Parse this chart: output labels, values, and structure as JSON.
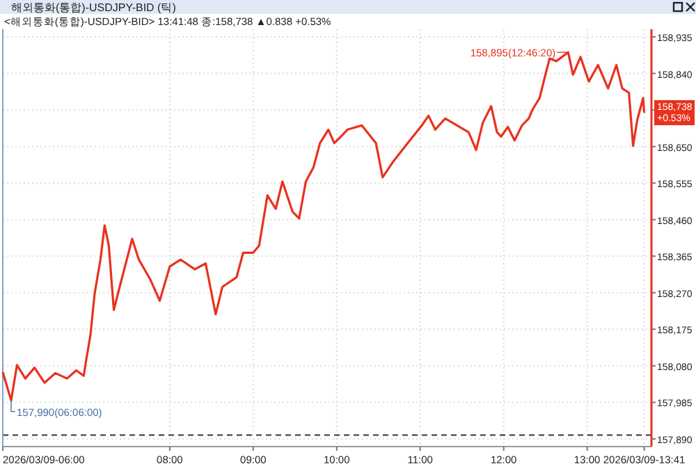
{
  "chart_data": {
    "type": "line",
    "title": "해외통화(통합)-USDJPY-BID (틱)",
    "subtitle": "<해외통화(통합)-USDJPY-BID> 13:41:48 종:158,738 ▲0.838 +0.53%",
    "x": [
      6.0,
      6.1,
      6.17,
      6.27,
      6.38,
      6.5,
      6.63,
      6.77,
      6.88,
      6.97,
      7.0,
      7.05,
      7.1,
      7.17,
      7.22,
      7.27,
      7.33,
      7.4,
      7.55,
      7.63,
      7.77,
      7.88,
      8.0,
      8.13,
      8.3,
      8.43,
      8.55,
      8.63,
      8.8,
      8.88,
      9.0,
      9.07,
      9.17,
      9.27,
      9.35,
      9.47,
      9.55,
      9.63,
      9.72,
      9.8,
      9.9,
      9.97,
      10.05,
      10.13,
      10.3,
      10.47,
      10.55,
      10.68,
      10.85,
      11.02,
      11.1,
      11.18,
      11.3,
      11.47,
      11.58,
      11.67,
      11.75,
      11.85,
      11.92,
      11.97,
      12.05,
      12.13,
      12.22,
      12.3,
      12.35,
      12.43,
      12.5,
      12.55,
      12.63,
      12.772,
      12.83,
      12.92,
      13.02,
      13.13,
      13.25,
      13.35,
      13.42,
      13.5,
      13.55,
      13.6,
      13.67,
      13.683
    ],
    "series": [
      {
        "color": "#e8321e",
        "values": [
          158064,
          157990,
          158082,
          158047,
          158075,
          158036,
          158061,
          158047,
          158068,
          158054,
          158096,
          158160,
          158267,
          158356,
          158445,
          158392,
          158225,
          158285,
          158410,
          158356,
          158303,
          158249,
          158338,
          158356,
          158331,
          158346,
          158214,
          158285,
          158310,
          158374,
          158374,
          158392,
          158523,
          158488,
          158559,
          158481,
          158463,
          158559,
          158595,
          158659,
          158694,
          158659,
          158676,
          158694,
          158705,
          158659,
          158570,
          158612,
          158659,
          158705,
          158730,
          158694,
          158723,
          158701,
          158687,
          158641,
          158712,
          158755,
          158687,
          158676,
          158701,
          158666,
          158705,
          158723,
          158748,
          158776,
          158837,
          158879,
          158872,
          158895,
          158837,
          158883,
          158819,
          158862,
          158801,
          158862,
          158801,
          158790,
          158652,
          158719,
          158776,
          158738
        ]
      }
    ],
    "xlim": [
      6,
      13.77
    ],
    "ylim": [
      157870,
      158955
    ],
    "xticks": [
      {
        "value": 6,
        "label": "2026/03/09-06:00"
      },
      {
        "value": 8,
        "label": "08:00"
      },
      {
        "value": 9,
        "label": "09:00"
      },
      {
        "value": 10,
        "label": "10:00"
      },
      {
        "value": 11,
        "label": "11:00"
      },
      {
        "value": 12,
        "label": "12:00"
      },
      {
        "value": 13,
        "label": "13:00"
      },
      {
        "value": 13.683,
        "label": "2026/03/09-13:41"
      }
    ],
    "yticks": [
      {
        "value": 157890,
        "label": "157,890"
      },
      {
        "value": 157985,
        "label": "157,985"
      },
      {
        "value": 158080,
        "label": "158,080"
      },
      {
        "value": 158175,
        "label": "158,175"
      },
      {
        "value": 158270,
        "label": "158,270"
      },
      {
        "value": 158365,
        "label": "158,365"
      },
      {
        "value": 158460,
        "label": "158,460"
      },
      {
        "value": 158555,
        "label": "158,555"
      },
      {
        "value": 158650,
        "label": "158,650"
      },
      {
        "value": 158745,
        "label": null
      },
      {
        "value": 158840,
        "label": "158,840"
      },
      {
        "value": 158935,
        "label": "158,935"
      }
    ],
    "ref_lines": [
      {
        "axis": "y",
        "value": 157900,
        "color": "#333333",
        "line_style": "dashed"
      }
    ],
    "annotations": [
      {
        "text": "158,895(12:46:20)",
        "x": 12.772,
        "y": 158895
      },
      {
        "text": "157,990(06:06:00)",
        "x": 6.1,
        "y": 157990
      },
      {
        "text": "158,738\n+0.53%",
        "x": 13.683,
        "y": 158738
      }
    ],
    "grid": true,
    "marker": "none",
    "line_style": "solid"
  }
}
